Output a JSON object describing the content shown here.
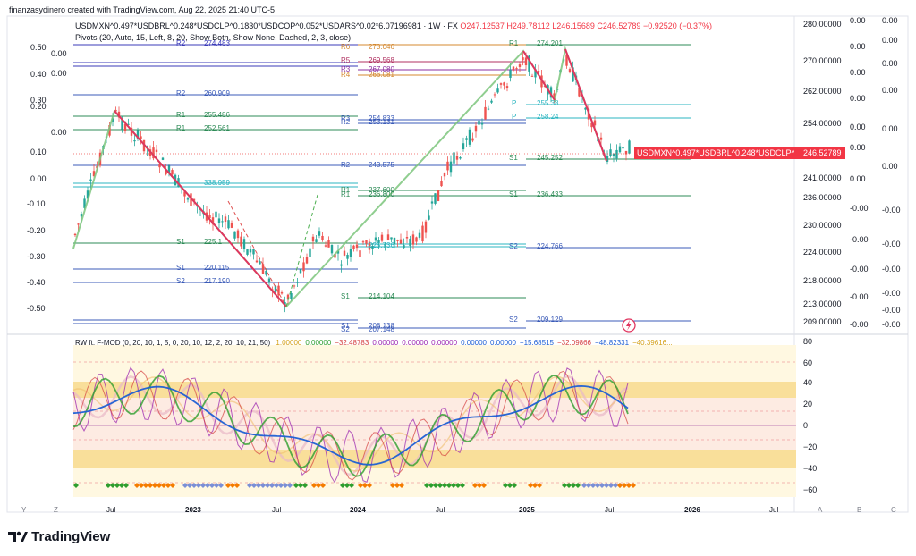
{
  "watermark": "finanzasydinero created with TradingView.com, Aug 22, 2025 21:40 UTC-5",
  "header": {
    "symbol": "USDMXN^0.497*USDBRL^0.248*USDCLP^0.1830*USDCOP^0.052*USDARS^0.02*6.07196981 · 1W · FX",
    "o": "O247.12537",
    "h": "H249.78112",
    "l": "L246.15689",
    "c": "C246.52789",
    "chg": "−0.92520 (−0.37%)",
    "pivots": "Pivots (20, Auto, 15, Left, 8, 20, Show Both, Show None, Dashed, 2, 3, close)"
  },
  "price_axis": [
    "280.00000",
    "270.00000",
    "262.00000",
    "254.00000",
    "246.52789",
    "241.00000",
    "236.00000",
    "230.00000",
    "224.00000",
    "218.00000",
    "213.00000",
    "209.00000"
  ],
  "price_tag": "USDMXN^0.497*USDBRL^0.248*USDCLP^0.18...",
  "left_overlay": [
    "0.00",
    "0.50",
    "0.00",
    "0.40",
    "0.30",
    "0.20",
    "0.00",
    "0.10",
    "0.00",
    "-0.10",
    "-0.20",
    "-0.30",
    "-0.40",
    "-0.50",
    "0.00",
    "-0.00"
  ],
  "right_overlay_a": [
    "0.00",
    "0.00",
    "0.00",
    "0.00",
    "0.00",
    "0.00",
    "0.00",
    "-0.00",
    "-0.00",
    "-0.00",
    "-0.00",
    "-0.00",
    "-0.00",
    "-0.00"
  ],
  "right_overlay_b": [
    "0.00",
    "0.00",
    "0.00",
    "0.00",
    "0.00",
    "0.00",
    "-0.00",
    "-0.00",
    "-0.00",
    "-0.00",
    "-0.00",
    "-0.00"
  ],
  "pivot_labels": [
    {
      "t": "R2",
      "c": "#3b3bb8"
    },
    {
      "t": "274.483",
      "c": "#3b3bb8"
    },
    {
      "t": "R6",
      "c": "#d4882f"
    },
    {
      "t": "273.046",
      "c": "#d4882f"
    },
    {
      "t": "R1",
      "c": "#2e8b57"
    },
    {
      "t": "274.201",
      "c": "#2e8b57"
    },
    {
      "t": "R5",
      "c": "#b03060"
    },
    {
      "t": "269.568",
      "c": "#b03060"
    },
    {
      "t": "R3",
      "c": "#8b2fa0"
    },
    {
      "t": "267.080",
      "c": "#8b2fa0"
    },
    {
      "t": "R4",
      "c": "#d4882f"
    },
    {
      "t": "266.081",
      "c": "#d4882f"
    },
    {
      "t": "R2",
      "c": "#3b5bb8"
    },
    {
      "t": "260.909",
      "c": "#3b5bb8"
    },
    {
      "t": "R1",
      "c": "#2e8b57"
    },
    {
      "t": "255.486",
      "c": "#2e8b57"
    },
    {
      "t": "R1",
      "c": "#2e8b57"
    },
    {
      "t": "252.561",
      "c": "#2e8b57"
    },
    {
      "t": "R3",
      "c": "#3b5bb8"
    },
    {
      "t": "254.833",
      "c": "#3b5bb8"
    },
    {
      "t": "R2",
      "c": "#3b5bb8"
    },
    {
      "t": "253.131",
      "c": "#3b5bb8"
    },
    {
      "t": "P",
      "c": "#2bb5c0"
    },
    {
      "t": "255.38",
      "c": "#2bb5c0"
    },
    {
      "t": "P",
      "c": "#2bb5c0"
    },
    {
      "t": "258.24",
      "c": "#2bb5c0"
    },
    {
      "t": "R2",
      "c": "#3b5bb8"
    },
    {
      "t": "243.575",
      "c": "#3b5bb8"
    },
    {
      "t": "S1",
      "c": "#2e8b57"
    },
    {
      "t": "245.252",
      "c": "#2e8b57"
    },
    {
      "t": "338.959",
      "c": "#2bb5c0"
    },
    {
      "t": "R1",
      "c": "#2e8b57"
    },
    {
      "t": "237.600",
      "c": "#2e8b57"
    },
    {
      "t": "R1",
      "c": "#2e8b57"
    },
    {
      "t": "236.800",
      "c": "#2e8b57"
    },
    {
      "t": "S1",
      "c": "#2e8b57"
    },
    {
      "t": "236.433",
      "c": "#2e8b57"
    },
    {
      "t": "S1",
      "c": "#2e8b57"
    },
    {
      "t": "225.1",
      "c": "#2e8b57"
    },
    {
      "t": "225.736",
      "c": "#2bb5c0"
    },
    {
      "t": "S2",
      "c": "#3b5bb8"
    },
    {
      "t": "224.766",
      "c": "#3b5bb8"
    },
    {
      "t": "S1",
      "c": "#3b5bb8"
    },
    {
      "t": "220.115",
      "c": "#3b5bb8"
    },
    {
      "t": "S2",
      "c": "#3b5bb8"
    },
    {
      "t": "217.190",
      "c": "#3b5bb8"
    },
    {
      "t": "S1",
      "c": "#2e8b57"
    },
    {
      "t": "214.104",
      "c": "#2e8b57"
    },
    {
      "t": "S1",
      "c": "#3b5bb8"
    },
    {
      "t": "208.138",
      "c": "#3b5bb8"
    },
    {
      "t": "S2",
      "c": "#3b5bb8"
    },
    {
      "t": "207.148",
      "c": "#3b5bb8"
    },
    {
      "t": "S2",
      "c": "#3b5bb8"
    },
    {
      "t": "209.129",
      "c": "#3b5bb8"
    }
  ],
  "indicator": {
    "title": "RW ft. F-MOD (0, 20, 10, 1, 5, 0, 20, 10, 12, 2, 20, 10, 21, 50)",
    "values": [
      {
        "v": "1.00000",
        "c": "#d4a017"
      },
      {
        "v": "0.00000",
        "c": "#2e9e2e"
      },
      {
        "v": "−32.48783",
        "c": "#d43f3f"
      },
      {
        "v": "0.00000",
        "c": "#9c27b0"
      },
      {
        "v": "0.00000",
        "c": "#9c27b0"
      },
      {
        "v": "0.00000",
        "c": "#9c27b0"
      },
      {
        "v": "0.00000",
        "c": "#1e5fd4"
      },
      {
        "v": "0.00000",
        "c": "#1e5fd4"
      },
      {
        "v": "−15.68515",
        "c": "#1e5fd4"
      },
      {
        "v": "−32.09866",
        "c": "#d43f3f"
      },
      {
        "v": "−48.82331",
        "c": "#1e5fd4"
      },
      {
        "v": "−40.39616...",
        "c": "#d4a017"
      }
    ],
    "axis": [
      "80",
      "60",
      "40",
      "20",
      "0",
      "−20",
      "−40",
      "−60"
    ]
  },
  "time_axis": [
    "Jul",
    "2023",
    "Jul",
    "2024",
    "Jul",
    "2025",
    "Jul",
    "2026",
    "Jul"
  ],
  "corner_left": [
    "Y",
    "Z"
  ],
  "corner_right": [
    "A",
    "B",
    "C"
  ],
  "brand": "TradingView",
  "colors": {
    "up": "#26a69a",
    "down": "#ef5350",
    "zigzag_up": "#7dc67d",
    "zigzag_down": "#e0355f",
    "price_tag": "#f23645"
  }
}
